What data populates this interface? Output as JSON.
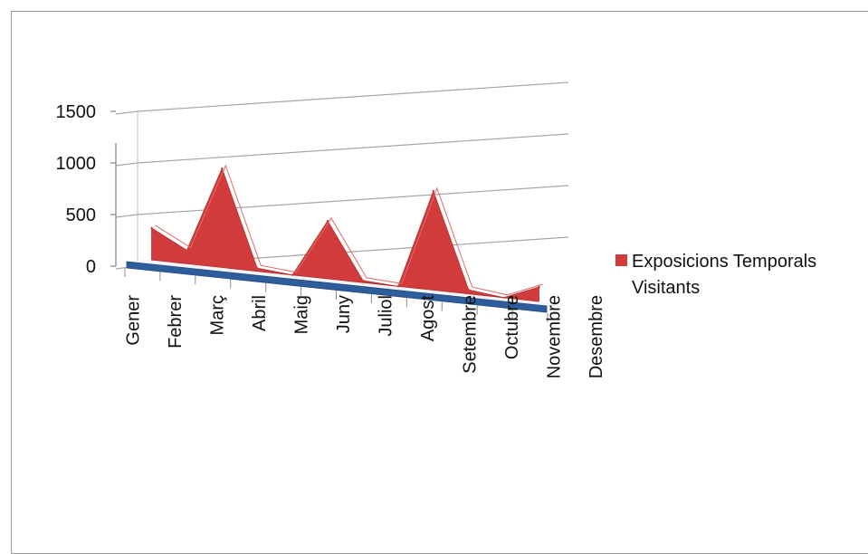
{
  "chart_data": {
    "type": "area",
    "categories": [
      "Gener",
      "Febrer",
      "Març",
      "Abril",
      "Maig",
      "Juny",
      "Juliol",
      "Agost",
      "Setembre",
      "Octubre",
      "Novembre",
      "Desembre"
    ],
    "series": [
      {
        "name": "Exposicions Temporals Visitants",
        "color": "#d23b3b",
        "values": [
          310,
          130,
          960,
          30,
          0,
          560,
          20,
          0,
          960,
          40,
          0,
          140
        ]
      }
    ],
    "y_ticks": [
      0,
      500,
      1000,
      1500
    ],
    "ylim": [
      0,
      1500
    ],
    "grid": true,
    "legend_position": "right",
    "view": "3d"
  }
}
